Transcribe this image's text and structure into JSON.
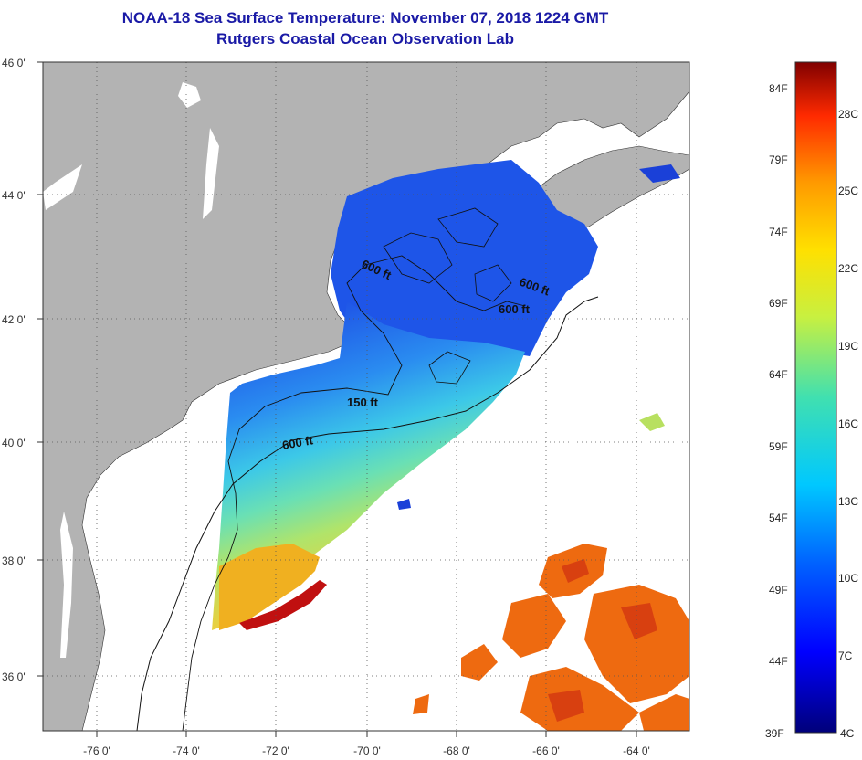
{
  "title": "NOAA-18 Sea Surface Temperature:  November 07, 2018 1224 GMT",
  "subtitle": "Rutgers Coastal Ocean Observation Lab",
  "lat_labels": [
    "46 0'",
    "44 0'",
    "42 0'",
    "40 0'",
    "38 0'",
    "36 0'"
  ],
  "lon_labels": [
    "-76 0'",
    "-74 0'",
    "-72 0'",
    "-70 0'",
    "-68 0'",
    "-66 0'",
    "-64 0'"
  ],
  "contour_labels": [
    "600 ft",
    "600 ft",
    "600 ft",
    "150 ft",
    "600 ft"
  ],
  "colorbar": {
    "f_labels": [
      "84F",
      "79F",
      "74F",
      "69F",
      "64F",
      "59F",
      "54F",
      "49F",
      "44F",
      "39F"
    ],
    "c_labels": [
      "28C",
      "25C",
      "22C",
      "19C",
      "16C",
      "13C",
      "10C",
      "7C",
      "4C"
    ]
  },
  "colors": {
    "land": "#b3b3b3",
    "title": "#1a1aa6"
  }
}
